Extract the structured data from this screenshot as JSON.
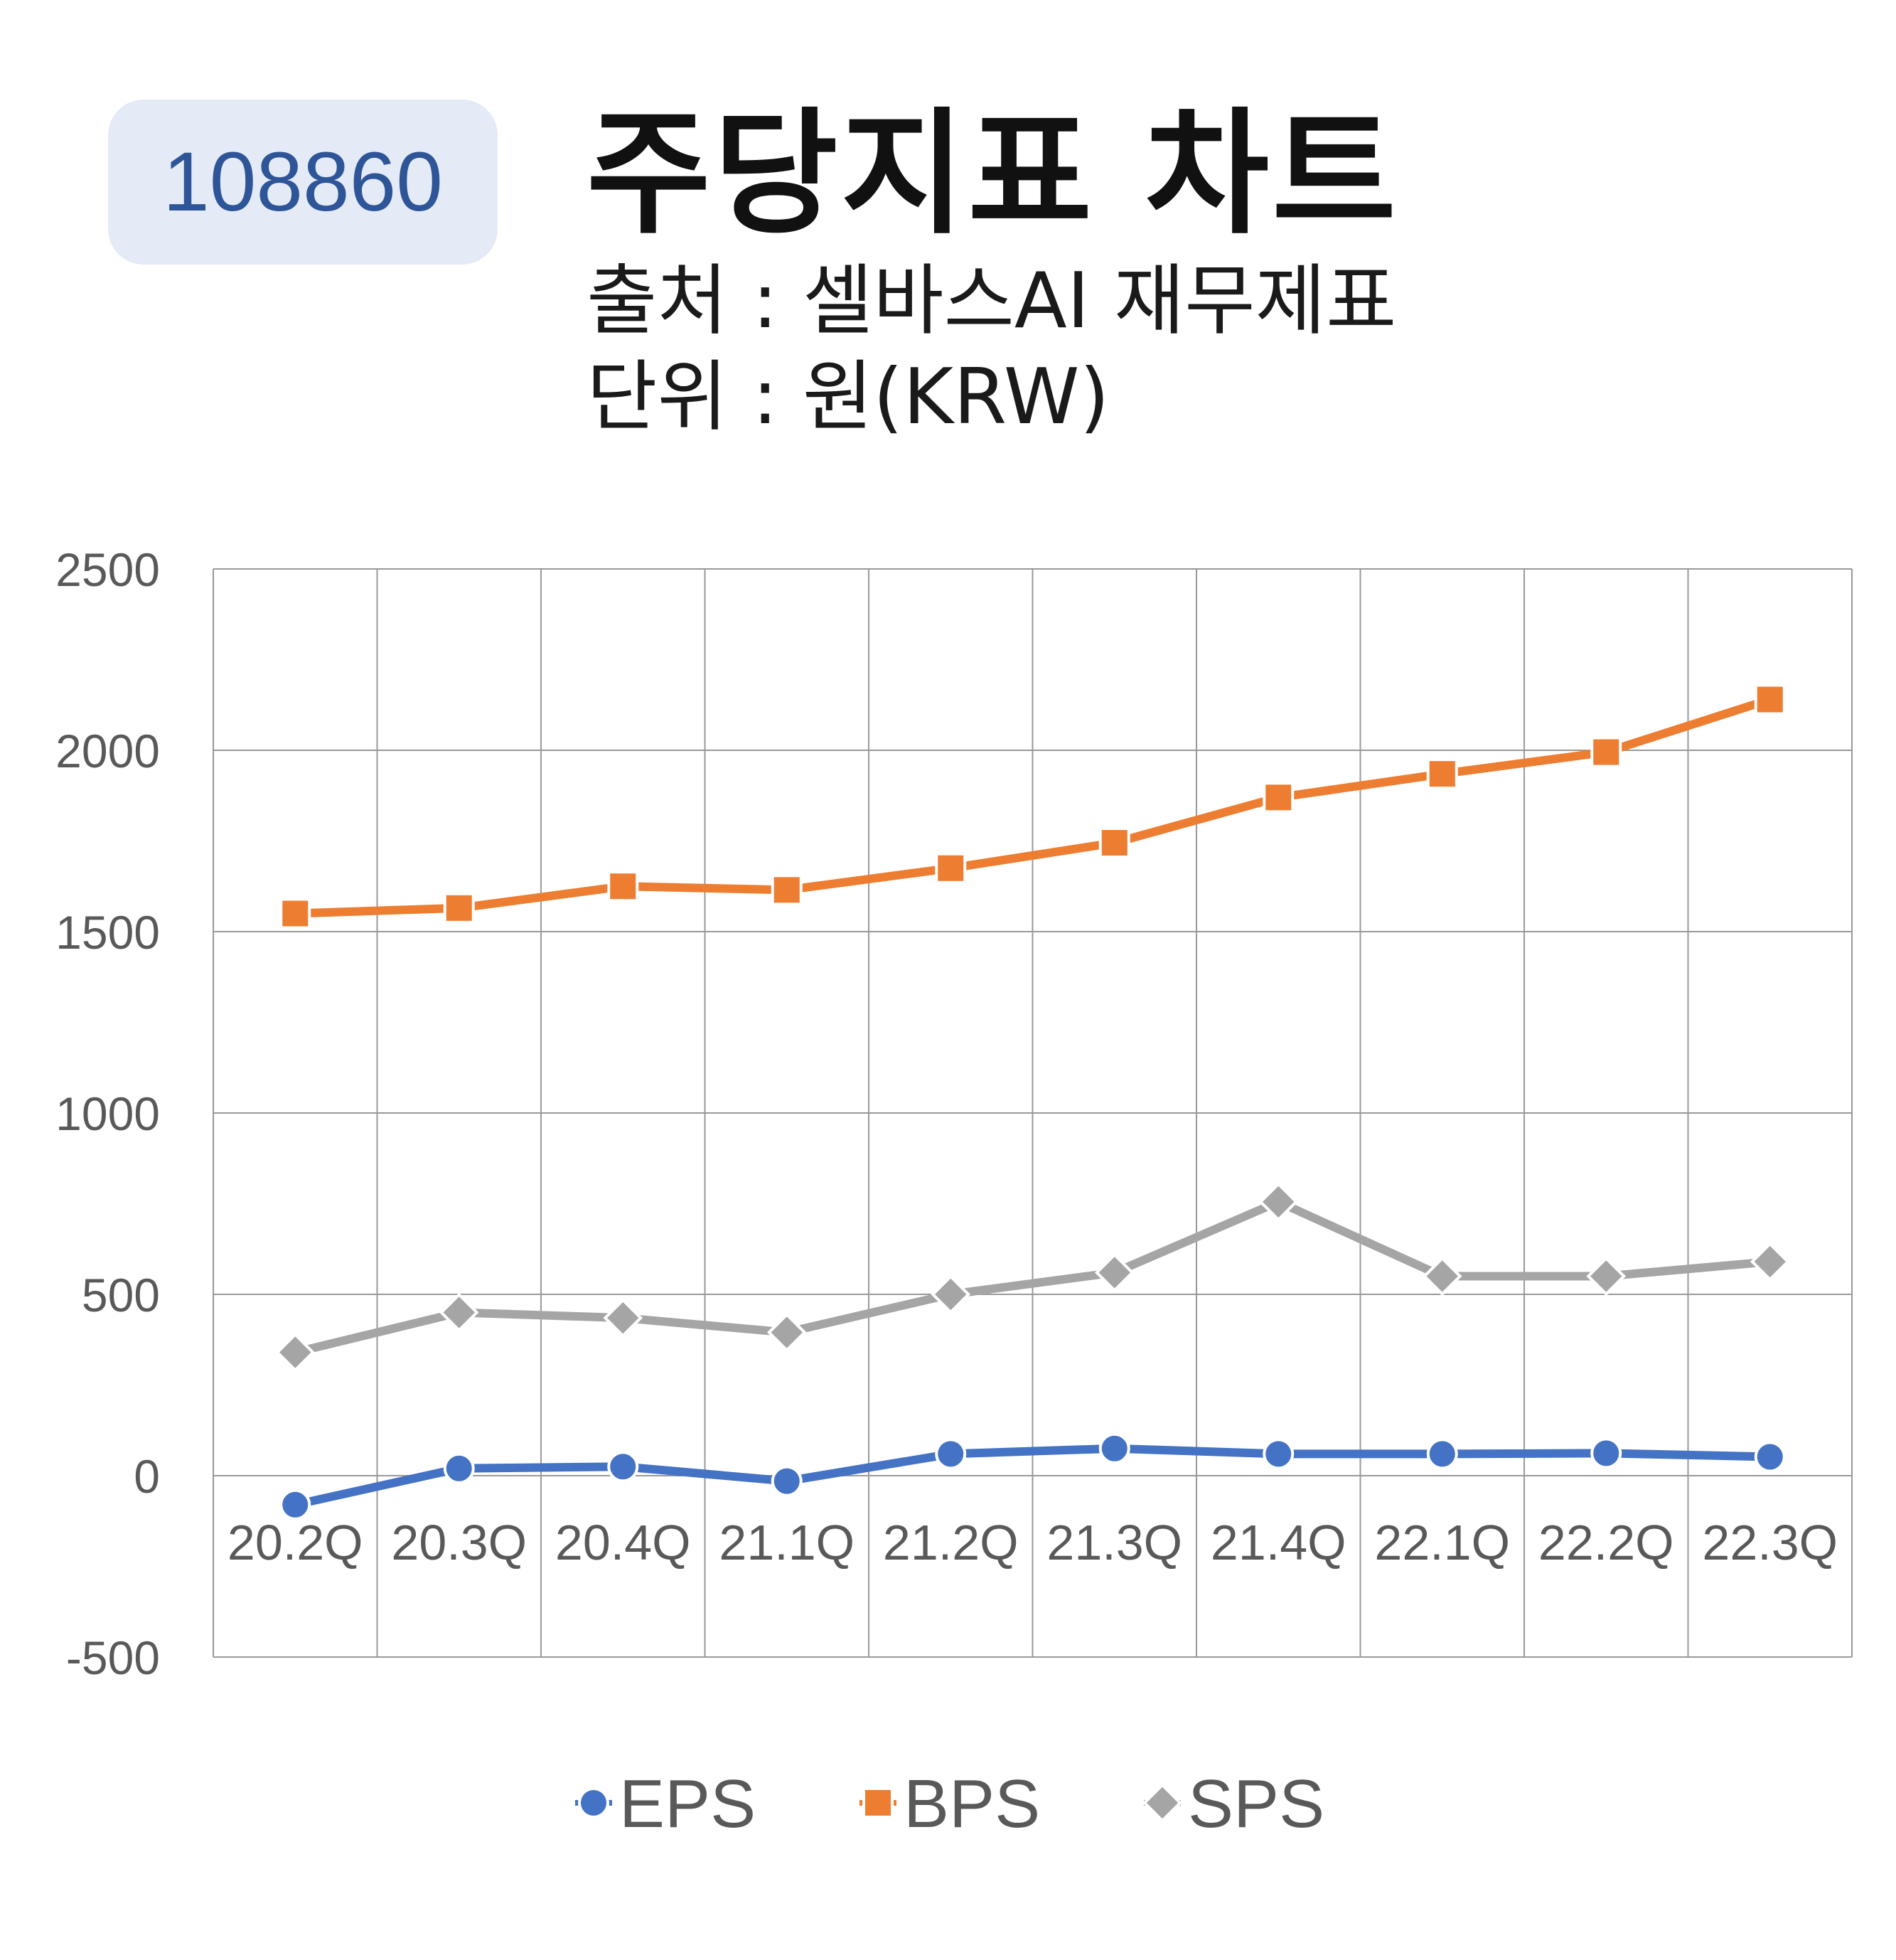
{
  "header": {
    "code": "108860",
    "title": "주당지표 차트",
    "source": "출처 : 셀바스AI 재무제표",
    "unit": "단위 : 원(KRW)"
  },
  "chart_data": {
    "type": "line",
    "categories": [
      "20.2Q",
      "20.3Q",
      "20.4Q",
      "21.1Q",
      "21.2Q",
      "21.3Q",
      "21.4Q",
      "22.1Q",
      "22.2Q",
      "22.3Q"
    ],
    "ylim": [
      -500,
      2500
    ],
    "yticks": [
      2500,
      2000,
      1500,
      1000,
      500,
      0,
      -500
    ],
    "grid": true,
    "legend_position": "bottom",
    "series": [
      {
        "name": "EPS",
        "color": "#4472c4",
        "marker": "circle",
        "values": [
          -80,
          20,
          25,
          -15,
          60,
          75,
          60,
          60,
          62,
          52
        ]
      },
      {
        "name": "BPS",
        "color": "#ed7d31",
        "marker": "square",
        "values": [
          1550,
          1565,
          1625,
          1615,
          1675,
          1745,
          1870,
          1935,
          1995,
          2140
        ]
      },
      {
        "name": "SPS",
        "color": "#a5a5a5",
        "marker": "diamond",
        "values": [
          340,
          450,
          435,
          395,
          500,
          560,
          755,
          550,
          550,
          590
        ]
      }
    ]
  }
}
